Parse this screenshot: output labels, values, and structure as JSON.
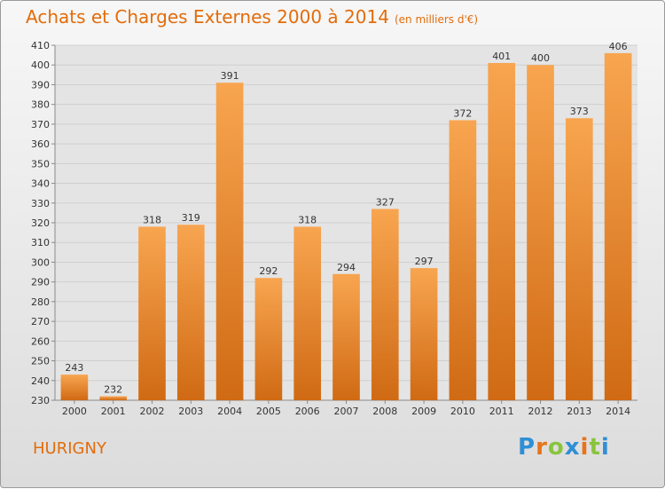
{
  "header": {
    "title": "Achats et Charges Externes 2000 à 2014",
    "subtitle": "(en milliers d'€)"
  },
  "footer": {
    "location": "HURIGNY",
    "logo_text": "Proxiti"
  },
  "colors": {
    "accent": "#e36c0a",
    "bar_light": "#f8a550",
    "bar_dark": "#d06a14",
    "logo": [
      "#2e8fd6",
      "#e8731a",
      "#8ac43f",
      "#2e8fd6",
      "#e8731a",
      "#8ac43f",
      "#2e8fd6"
    ]
  },
  "chart_data": {
    "type": "bar",
    "title": "Achats et Charges Externes 2000 à 2014",
    "subtitle": "(en milliers d'€)",
    "categories": [
      "2000",
      "2001",
      "2002",
      "2003",
      "2004",
      "2005",
      "2006",
      "2007",
      "2008",
      "2009",
      "2010",
      "2011",
      "2012",
      "2013",
      "2014"
    ],
    "values": [
      243,
      232,
      318,
      319,
      391,
      292,
      318,
      294,
      327,
      297,
      372,
      401,
      400,
      373,
      406
    ],
    "ylim": [
      230,
      410
    ],
    "ytick_step": 10,
    "grid": true,
    "legend": false
  }
}
